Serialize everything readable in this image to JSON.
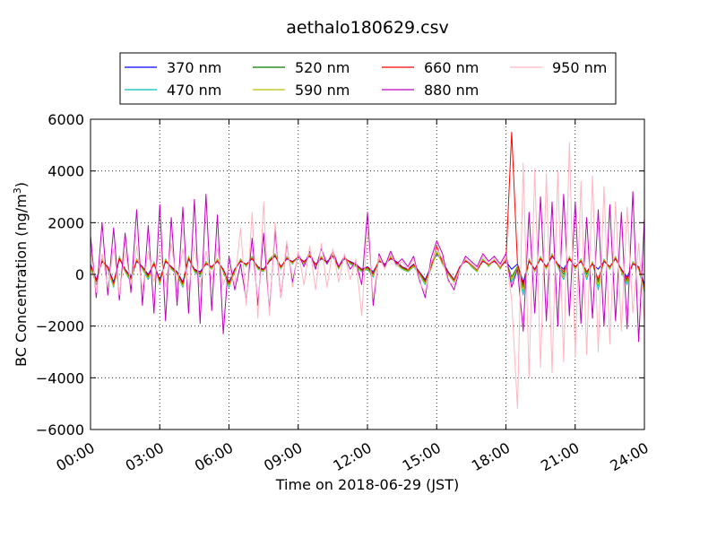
{
  "chart_data": {
    "type": "line",
    "title": "aethalo180629.csv",
    "xlabel": "Time on 2018-06-29 (JST)",
    "ylabel_main": "BC Concentration (ng/m",
    "ylabel_sup": "3",
    "ylabel_close": ")",
    "xlim": [
      0,
      24
    ],
    "ylim": [
      -6000,
      6000
    ],
    "grid": true,
    "legend_position": "top-center",
    "x_ticks": [
      {
        "value": 0,
        "label": "00:00"
      },
      {
        "value": 3,
        "label": "03:00"
      },
      {
        "value": 6,
        "label": "06:00"
      },
      {
        "value": 9,
        "label": "09:00"
      },
      {
        "value": 12,
        "label": "12:00"
      },
      {
        "value": 15,
        "label": "15:00"
      },
      {
        "value": 18,
        "label": "18:00"
      },
      {
        "value": 21,
        "label": "21:00"
      },
      {
        "value": 24,
        "label": "24:00"
      }
    ],
    "y_ticks": [
      {
        "value": 6000,
        "label": "6000"
      },
      {
        "value": 4000,
        "label": "4000"
      },
      {
        "value": 2000,
        "label": "2000"
      },
      {
        "value": 0,
        "label": "0"
      },
      {
        "value": -2000,
        "label": "−2000"
      },
      {
        "value": -4000,
        "label": "−4000"
      },
      {
        "value": -6000,
        "label": "−6000"
      }
    ],
    "x": [
      0.0,
      0.25,
      0.5,
      0.75,
      1.0,
      1.25,
      1.5,
      1.75,
      2.0,
      2.25,
      2.5,
      2.75,
      3.0,
      3.25,
      3.5,
      3.75,
      4.0,
      4.25,
      4.5,
      4.75,
      5.0,
      5.25,
      5.5,
      5.75,
      6.0,
      6.25,
      6.5,
      6.75,
      7.0,
      7.25,
      7.5,
      7.75,
      8.0,
      8.25,
      8.5,
      8.75,
      9.0,
      9.25,
      9.5,
      9.75,
      10.0,
      10.25,
      10.5,
      10.75,
      11.0,
      11.25,
      11.5,
      11.75,
      12.0,
      12.25,
      12.5,
      12.75,
      13.0,
      13.25,
      13.5,
      13.75,
      14.0,
      14.25,
      14.5,
      14.75,
      15.0,
      15.25,
      15.5,
      15.75,
      16.0,
      16.25,
      16.5,
      16.75,
      17.0,
      17.25,
      17.5,
      17.75,
      18.0,
      18.25,
      18.5,
      18.75,
      19.0,
      19.25,
      19.5,
      19.75,
      20.0,
      20.25,
      20.5,
      20.75,
      21.0,
      21.25,
      21.5,
      21.75,
      22.0,
      22.25,
      22.5,
      22.75,
      23.0,
      23.25,
      23.5,
      23.75,
      24.0
    ],
    "series": [
      {
        "name": "370 nm",
        "color": "#0000ff",
        "values": [
          400,
          -200,
          500,
          300,
          -300,
          600,
          200,
          -100,
          500,
          300,
          0,
          400,
          -200,
          500,
          300,
          100,
          -300,
          600,
          200,
          100,
          400,
          300,
          500,
          200,
          -300,
          200,
          500,
          400,
          600,
          300,
          200,
          500,
          700,
          300,
          600,
          500,
          650,
          500,
          700,
          400,
          600,
          500,
          700,
          300,
          600,
          500,
          400,
          200,
          300,
          100,
          500,
          400,
          600,
          500,
          300,
          200,
          400,
          100,
          -200,
          300,
          800,
          500,
          100,
          -200,
          300,
          500,
          400,
          200,
          500,
          400,
          500,
          300,
          500,
          200,
          400,
          -300,
          500,
          200,
          600,
          300,
          700,
          400,
          200,
          600,
          300,
          500,
          100,
          400,
          200,
          500,
          300,
          600,
          200,
          -100,
          400,
          300,
          -400
        ]
      },
      {
        "name": "470 nm",
        "color": "#00bfbf",
        "values": [
          300,
          -400,
          600,
          200,
          -500,
          700,
          100,
          -300,
          600,
          200,
          -200,
          500,
          -400,
          600,
          200,
          0,
          -500,
          700,
          100,
          -100,
          500,
          200,
          600,
          100,
          -500,
          100,
          600,
          300,
          700,
          200,
          100,
          600,
          800,
          200,
          700,
          400,
          700,
          400,
          800,
          300,
          700,
          400,
          800,
          200,
          700,
          400,
          300,
          100,
          200,
          -100,
          600,
          300,
          700,
          400,
          200,
          100,
          300,
          0,
          -400,
          200,
          900,
          400,
          0,
          -300,
          200,
          600,
          300,
          100,
          600,
          300,
          600,
          200,
          600,
          -300,
          200,
          -800,
          600,
          100,
          700,
          200,
          800,
          300,
          -200,
          700,
          200,
          600,
          -200,
          500,
          -600,
          600,
          200,
          700,
          100,
          -400,
          500,
          200,
          -700
        ]
      },
      {
        "name": "520 nm",
        "color": "#008000",
        "values": [
          350,
          -300,
          550,
          250,
          -400,
          650,
          150,
          -200,
          550,
          250,
          -100,
          450,
          -300,
          550,
          250,
          50,
          -400,
          650,
          150,
          0,
          450,
          250,
          550,
          150,
          -400,
          150,
          550,
          350,
          650,
          250,
          150,
          550,
          750,
          250,
          650,
          450,
          700,
          450,
          750,
          350,
          650,
          450,
          750,
          250,
          650,
          450,
          350,
          150,
          250,
          0,
          550,
          350,
          650,
          450,
          250,
          150,
          350,
          50,
          -300,
          250,
          850,
          450,
          50,
          -250,
          250,
          550,
          350,
          150,
          550,
          350,
          550,
          250,
          550,
          -100,
          300,
          -500,
          550,
          150,
          650,
          250,
          750,
          350,
          0,
          650,
          250,
          550,
          0,
          450,
          -300,
          550,
          250,
          650,
          150,
          -250,
          450,
          250,
          -550
        ]
      },
      {
        "name": "590 nm",
        "color": "#bfbf00",
        "values": [
          300,
          -350,
          600,
          220,
          -450,
          680,
          120,
          -250,
          580,
          220,
          -150,
          480,
          -350,
          580,
          220,
          20,
          -450,
          680,
          120,
          -50,
          480,
          220,
          580,
          120,
          -450,
          120,
          580,
          320,
          680,
          220,
          120,
          580,
          780,
          220,
          680,
          420,
          720,
          420,
          780,
          320,
          680,
          420,
          780,
          220,
          680,
          420,
          320,
          120,
          220,
          -50,
          580,
          320,
          680,
          420,
          220,
          120,
          320,
          20,
          -350,
          220,
          880,
          420,
          20,
          -280,
          220,
          580,
          320,
          120,
          580,
          320,
          580,
          220,
          580,
          -200,
          250,
          -650,
          580,
          120,
          680,
          220,
          780,
          320,
          -100,
          680,
          220,
          580,
          -100,
          480,
          -450,
          580,
          220,
          680,
          120,
          -320,
          480,
          220,
          -620
        ]
      },
      {
        "name": "660 nm",
        "color": "#ff0000",
        "values": [
          380,
          -250,
          520,
          280,
          -350,
          620,
          180,
          -150,
          520,
          280,
          -50,
          420,
          -250,
          520,
          280,
          80,
          -350,
          620,
          180,
          50,
          420,
          280,
          520,
          180,
          -350,
          180,
          520,
          380,
          620,
          280,
          180,
          520,
          720,
          280,
          620,
          480,
          680,
          480,
          720,
          380,
          620,
          480,
          720,
          280,
          620,
          480,
          380,
          180,
          280,
          50,
          520,
          380,
          620,
          480,
          280,
          180,
          380,
          80,
          -250,
          280,
          1100,
          480,
          80,
          -220,
          280,
          520,
          380,
          180,
          520,
          380,
          520,
          280,
          520,
          5500,
          400,
          -400,
          520,
          180,
          620,
          280,
          720,
          380,
          100,
          620,
          280,
          520,
          100,
          420,
          -200,
          520,
          280,
          620,
          180,
          -180,
          420,
          280,
          -500
        ]
      },
      {
        "name": "880 nm",
        "color": "#bf00bf",
        "values": [
          1500,
          -900,
          2000,
          -800,
          1800,
          -1000,
          1600,
          -700,
          2500,
          -1200,
          1900,
          -1500,
          2700,
          -1800,
          2200,
          -1200,
          2600,
          -1500,
          2900,
          -1900,
          3100,
          -1400,
          2300,
          -2300,
          700,
          -600,
          400,
          -1000,
          1400,
          -1200,
          1600,
          -1400,
          1700,
          -900,
          1200,
          -300,
          800,
          300,
          900,
          200,
          1000,
          400,
          900,
          300,
          700,
          200,
          500,
          -400,
          2400,
          -1200,
          800,
          300,
          900,
          400,
          600,
          300,
          700,
          -200,
          -900,
          600,
          1300,
          800,
          -200,
          -600,
          200,
          700,
          500,
          300,
          800,
          500,
          700,
          400,
          800,
          -500,
          200,
          -2200,
          2400,
          -1500,
          3000,
          -1800,
          2800,
          -2000,
          3100,
          -1600,
          2800,
          -1900,
          2200,
          -1700,
          2500,
          -2000,
          2700,
          -1800,
          2400,
          -2100,
          3200,
          -2600,
          2200
        ]
      },
      {
        "name": "950 nm",
        "color": "#ffb6c1",
        "values": [
          1000,
          -700,
          800,
          -500,
          1000,
          -800,
          900,
          -400,
          1100,
          -600,
          900,
          -300,
          1000,
          -500,
          1200,
          -400,
          1000,
          -600,
          1100,
          -500,
          900,
          -200,
          1000,
          -400,
          300,
          -400,
          1800,
          -1200,
          2400,
          -1700,
          2800,
          -1600,
          2000,
          -900,
          1300,
          -500,
          900,
          -400,
          1100,
          -600,
          1200,
          -500,
          1000,
          -300,
          800,
          -200,
          600,
          -1600,
          1800,
          -900,
          700,
          200,
          800,
          300,
          500,
          200,
          600,
          -300,
          -700,
          400,
          1000,
          600,
          -300,
          -400,
          200,
          600,
          400,
          200,
          700,
          400,
          600,
          300,
          700,
          -1000,
          -5200,
          4300,
          -4000,
          4100,
          -3600,
          3900,
          -3800,
          4000,
          -3400,
          5100,
          -3200,
          3600,
          -3100,
          3800,
          -3000,
          3400,
          -2700,
          2800,
          -2200,
          2600,
          -1500,
          1200,
          -1800
        ]
      }
    ]
  }
}
